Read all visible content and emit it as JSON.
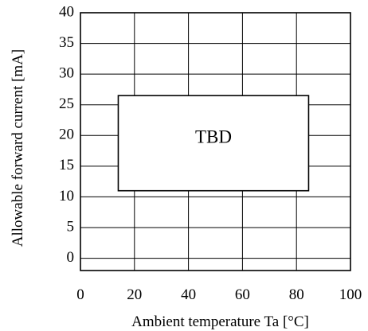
{
  "chart_data": {
    "type": "line",
    "title": "",
    "xlabel": "Ambient temperature Ta [°C]",
    "ylabel": "Allowable forward current [mA]",
    "xlim": [
      0,
      100
    ],
    "ylim": [
      -2,
      40
    ],
    "x_ticks": [
      "0",
      "20",
      "40",
      "60",
      "80",
      "100"
    ],
    "y_ticks": [
      "0",
      "5",
      "10",
      "15",
      "20",
      "25",
      "30",
      "35",
      "40"
    ],
    "x_grid": [
      0,
      20,
      40,
      60,
      80,
      100
    ],
    "y_grid": [
      -2,
      0,
      5,
      10,
      15,
      20,
      25,
      30,
      35,
      40
    ],
    "grid": true,
    "annotation": {
      "text": "TBD",
      "x_range": [
        14,
        84.5
      ],
      "y_range": [
        11,
        26.5
      ]
    }
  }
}
